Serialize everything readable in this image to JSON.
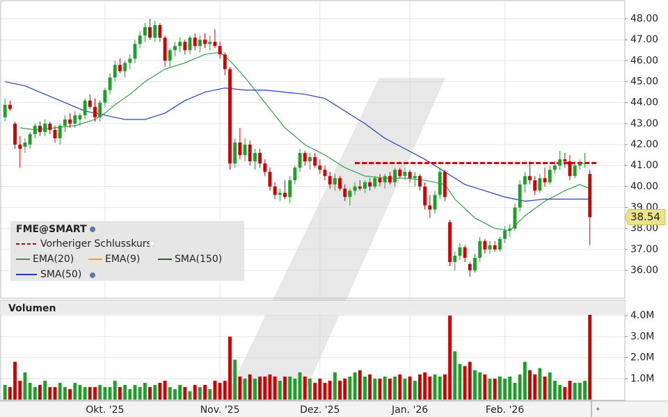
{
  "chart_data": {
    "type": "candlestick",
    "title": "FME@SMART",
    "up_color": "#1f9e2a",
    "down_color": "#cc0000",
    "grid": true,
    "xlim": [
      -1,
      124
    ],
    "xticks": [
      {
        "value": 20,
        "label": "Okt. '25"
      },
      {
        "value": 43,
        "label": "Nov. '25"
      },
      {
        "value": 63,
        "label": "Dez. '25"
      },
      {
        "value": 81,
        "label": "Jan. '26"
      },
      {
        "value": 100,
        "label": "Feb. '26"
      }
    ],
    "ylim": [
      34.71,
      48.83
    ],
    "yticks": [
      {
        "value": 36,
        "label": "36.00"
      },
      {
        "value": 37,
        "label": "37.00"
      },
      {
        "value": 38,
        "label": "38.00"
      },
      {
        "value": 39,
        "label": "39.00"
      },
      {
        "value": 40,
        "label": "40.00"
      },
      {
        "value": 41,
        "label": "41.00"
      },
      {
        "value": 42,
        "label": "42.00"
      },
      {
        "value": 43,
        "label": "43.00"
      },
      {
        "value": 44,
        "label": "44.00"
      },
      {
        "value": 45,
        "label": "45.00"
      },
      {
        "value": 46,
        "label": "46.00"
      },
      {
        "value": 47,
        "label": "47.00"
      },
      {
        "value": 48,
        "label": "48.00"
      }
    ],
    "ohlc": [
      [
        43.3,
        44.2,
        43.1,
        43.9
      ],
      [
        43.9,
        44.1,
        43.6,
        43.7
      ],
      [
        43.0,
        43.1,
        41.8,
        42.0
      ],
      [
        42.0,
        42.4,
        40.9,
        41.8
      ],
      [
        41.9,
        42.3,
        41.6,
        42.1
      ],
      [
        42.0,
        42.6,
        41.8,
        42.5
      ],
      [
        42.5,
        43.0,
        42.3,
        42.9
      ],
      [
        42.9,
        43.1,
        42.4,
        42.6
      ],
      [
        42.6,
        43.2,
        42.4,
        43.0
      ],
      [
        43.0,
        43.1,
        42.5,
        42.7
      ],
      [
        42.7,
        42.9,
        42.1,
        42.3
      ],
      [
        42.3,
        43.0,
        42.0,
        42.9
      ],
      [
        42.9,
        43.4,
        42.6,
        43.2
      ],
      [
        43.2,
        43.5,
        42.8,
        43.0
      ],
      [
        43.0,
        43.6,
        42.8,
        43.4
      ],
      [
        43.2,
        43.5,
        42.9,
        43.4
      ],
      [
        43.4,
        44.2,
        43.2,
        44.1
      ],
      [
        44.1,
        44.4,
        43.7,
        43.8
      ],
      [
        43.8,
        44.2,
        43.1,
        43.3
      ],
      [
        43.3,
        44.1,
        43.1,
        44.0
      ],
      [
        44.0,
        44.7,
        43.8,
        44.6
      ],
      [
        44.6,
        45.4,
        44.4,
        45.2
      ],
      [
        45.2,
        46.0,
        45.0,
        45.8
      ],
      [
        45.8,
        46.1,
        45.4,
        45.5
      ],
      [
        45.5,
        46.0,
        45.2,
        45.9
      ],
      [
        45.9,
        46.3,
        45.6,
        46.1
      ],
      [
        46.1,
        47.0,
        45.9,
        46.8
      ],
      [
        46.8,
        47.4,
        46.6,
        47.2
      ],
      [
        47.2,
        47.8,
        46.9,
        47.6
      ],
      [
        47.6,
        48.0,
        47.0,
        47.1
      ],
      [
        47.1,
        47.9,
        46.9,
        47.7
      ],
      [
        47.7,
        47.8,
        46.9,
        47.1
      ],
      [
        47.1,
        47.2,
        45.7,
        46.0
      ],
      [
        46.0,
        46.6,
        45.7,
        46.5
      ],
      [
        46.5,
        46.9,
        46.2,
        46.7
      ],
      [
        46.7,
        47.1,
        46.4,
        46.9
      ],
      [
        46.9,
        47.0,
        46.3,
        46.5
      ],
      [
        46.5,
        47.2,
        46.3,
        47.1
      ],
      [
        47.1,
        47.3,
        46.5,
        46.7
      ],
      [
        46.7,
        47.2,
        46.4,
        47.0
      ],
      [
        47.0,
        47.3,
        46.6,
        46.8
      ],
      [
        46.8,
        47.2,
        46.5,
        46.9
      ],
      [
        46.9,
        47.5,
        46.6,
        46.7
      ],
      [
        46.7,
        46.9,
        46.1,
        46.3
      ],
      [
        46.3,
        46.4,
        45.3,
        45.6
      ],
      [
        45.6,
        45.7,
        40.8,
        41.1
      ],
      [
        41.1,
        42.3,
        40.9,
        42.1
      ],
      [
        42.1,
        42.8,
        41.3,
        41.5
      ],
      [
        41.5,
        42.3,
        41.2,
        42.0
      ],
      [
        42.0,
        42.2,
        41.0,
        41.2
      ],
      [
        41.2,
        41.8,
        40.8,
        41.6
      ],
      [
        41.6,
        41.8,
        40.9,
        41.1
      ],
      [
        41.1,
        41.3,
        40.5,
        40.7
      ],
      [
        40.7,
        40.9,
        39.8,
        40.0
      ],
      [
        40.0,
        40.2,
        39.4,
        39.6
      ],
      [
        39.6,
        39.9,
        39.3,
        39.7
      ],
      [
        39.7,
        40.3,
        39.4,
        39.5
      ],
      [
        39.5,
        40.5,
        39.2,
        40.3
      ],
      [
        40.3,
        41.0,
        40.1,
        40.9
      ],
      [
        40.9,
        41.8,
        40.7,
        41.6
      ],
      [
        41.6,
        41.7,
        41.0,
        41.2
      ],
      [
        41.2,
        41.6,
        40.8,
        41.4
      ],
      [
        41.4,
        41.6,
        40.9,
        41.0
      ],
      [
        41.0,
        41.3,
        40.6,
        40.8
      ],
      [
        40.8,
        41.0,
        40.3,
        40.5
      ],
      [
        40.5,
        40.7,
        39.9,
        40.1
      ],
      [
        40.1,
        40.6,
        39.8,
        40.4
      ],
      [
        40.4,
        40.5,
        39.8,
        39.9
      ],
      [
        39.9,
        40.1,
        39.3,
        39.5
      ],
      [
        39.5,
        39.9,
        39.1,
        39.8
      ],
      [
        39.8,
        40.2,
        39.6,
        40.0
      ],
      [
        40.0,
        40.3,
        39.8,
        39.9
      ],
      [
        39.9,
        40.3,
        39.7,
        40.2
      ],
      [
        40.2,
        40.4,
        39.8,
        40.0
      ],
      [
        40.0,
        40.5,
        39.9,
        40.4
      ],
      [
        40.4,
        40.6,
        40.0,
        40.2
      ],
      [
        40.2,
        40.6,
        39.9,
        40.5
      ],
      [
        40.5,
        40.7,
        40.1,
        40.2
      ],
      [
        40.2,
        40.9,
        40.0,
        40.8
      ],
      [
        40.8,
        40.9,
        40.4,
        40.5
      ],
      [
        40.5,
        40.9,
        40.3,
        40.7
      ],
      [
        40.7,
        40.8,
        40.2,
        40.4
      ],
      [
        40.4,
        40.7,
        40.0,
        40.5
      ],
      [
        40.5,
        40.6,
        39.8,
        40.0
      ],
      [
        40.0,
        40.2,
        38.9,
        39.1
      ],
      [
        39.1,
        39.6,
        38.5,
        38.9
      ],
      [
        38.9,
        39.8,
        38.7,
        39.6
      ],
      [
        39.6,
        40.9,
        39.4,
        40.7
      ],
      [
        40.7,
        40.8,
        39.3,
        39.5
      ],
      [
        38.3,
        38.4,
        36.2,
        36.4
      ],
      [
        36.4,
        36.9,
        36.0,
        36.7
      ],
      [
        36.7,
        37.3,
        36.5,
        37.1
      ],
      [
        37.1,
        37.2,
        36.4,
        36.6
      ],
      [
        36.3,
        36.4,
        35.7,
        36.0
      ],
      [
        36.0,
        36.8,
        35.9,
        36.6
      ],
      [
        36.6,
        37.6,
        36.4,
        37.4
      ],
      [
        37.4,
        37.5,
        36.8,
        37.0
      ],
      [
        37.0,
        37.4,
        36.8,
        37.2
      ],
      [
        37.2,
        37.4,
        36.9,
        37.0
      ],
      [
        37.0,
        37.6,
        36.9,
        37.5
      ],
      [
        37.5,
        38.1,
        37.3,
        37.9
      ],
      [
        37.9,
        38.2,
        37.6,
        38.0
      ],
      [
        38.0,
        39.2,
        37.9,
        39.0
      ],
      [
        39.0,
        40.3,
        38.8,
        40.1
      ],
      [
        40.1,
        40.7,
        39.7,
        40.5
      ],
      [
        40.5,
        41.2,
        40.1,
        40.3
      ],
      [
        40.3,
        40.5,
        39.6,
        39.8
      ],
      [
        39.8,
        40.6,
        39.7,
        40.4
      ],
      [
        40.4,
        40.9,
        40.0,
        40.2
      ],
      [
        40.2,
        41.0,
        40.1,
        40.8
      ],
      [
        40.8,
        41.2,
        40.6,
        41.0
      ],
      [
        41.0,
        41.7,
        40.8,
        41.3
      ],
      [
        41.3,
        41.6,
        40.9,
        41.2
      ],
      [
        41.2,
        41.5,
        40.3,
        40.5
      ],
      [
        40.5,
        41.2,
        40.4,
        41.0
      ],
      [
        41.0,
        41.3,
        40.8,
        41.1
      ],
      [
        41.1,
        41.6,
        40.9,
        41.12
      ],
      [
        40.6,
        40.8,
        37.2,
        38.54
      ]
    ],
    "series": [
      {
        "name": "EMA(20)",
        "color": "#2e9e4a",
        "x": [
          3,
          6,
          10,
          14,
          18,
          20,
          22,
          25,
          28,
          32,
          36,
          40,
          43,
          45,
          48,
          52,
          56,
          60,
          64,
          68,
          72,
          76,
          80,
          84,
          88,
          90,
          94,
          98,
          101,
          104,
          108,
          112,
          115,
          117
        ],
        "values": [
          42.8,
          42.7,
          42.8,
          42.9,
          43.2,
          43.5,
          43.9,
          44.4,
          45.0,
          45.6,
          45.9,
          46.3,
          46.4,
          46.0,
          45.2,
          44.0,
          42.8,
          42.0,
          41.5,
          40.9,
          40.5,
          40.4,
          40.4,
          40.3,
          40.1,
          39.4,
          38.5,
          38.0,
          37.9,
          38.6,
          39.3,
          39.8,
          40.1,
          39.9
        ]
      },
      {
        "name": "EMA(9)",
        "color": "#e8a030",
        "x": [],
        "values": []
      },
      {
        "name": "SMA(150)",
        "color": "#2d5e1e",
        "x": [],
        "values": []
      },
      {
        "name": "SMA(50)",
        "color": "#1f3fbf",
        "x": [
          0,
          4,
          8,
          12,
          16,
          20,
          24,
          28,
          32,
          36,
          40,
          44,
          48,
          52,
          56,
          60,
          64,
          68,
          72,
          76,
          80,
          84,
          88,
          92,
          96,
          100,
          104,
          108,
          112,
          117
        ],
        "values": [
          45.0,
          44.8,
          44.4,
          44.0,
          43.6,
          43.4,
          43.2,
          43.2,
          43.5,
          44.1,
          44.5,
          44.7,
          44.6,
          44.6,
          44.5,
          44.4,
          44.2,
          43.6,
          43.0,
          42.3,
          41.8,
          41.3,
          40.7,
          40.1,
          39.8,
          39.5,
          39.3,
          39.4,
          39.4,
          39.4
        ]
      }
    ],
    "reference_line": {
      "name": "Vorheriger Schlusskurs",
      "value": 41.12,
      "x_start": 70,
      "color": "#cc0000"
    },
    "volume": {
      "title": "Volumen",
      "ylim": [
        0,
        4700000
      ],
      "yticks": [
        {
          "value": 1000000,
          "label": "1.0M"
        },
        {
          "value": 2000000,
          "label": "2.0M"
        },
        {
          "value": 3000000,
          "label": "3.0M"
        },
        {
          "value": 4000000,
          "label": "4.0M"
        }
      ],
      "values": [
        700000,
        600000,
        1800000,
        900000,
        1300000,
        800000,
        600000,
        700000,
        900000,
        600000,
        600000,
        800000,
        600000,
        500000,
        800000,
        700000,
        600000,
        600000,
        600000,
        700000,
        600000,
        600000,
        900000,
        600000,
        700000,
        500000,
        700000,
        600000,
        800000,
        600000,
        700000,
        800000,
        900000,
        600000,
        500000,
        700000,
        600000,
        400000,
        700000,
        600000,
        700000,
        500000,
        900000,
        800000,
        900000,
        3000000,
        1900000,
        1100000,
        1000000,
        1200000,
        1000000,
        1100000,
        1100000,
        1200000,
        1100000,
        900000,
        1100000,
        1100000,
        1000000,
        1300000,
        1100000,
        1000000,
        800000,
        1000000,
        800000,
        900000,
        1300000,
        900000,
        1000000,
        1100000,
        1300000,
        1400000,
        1100000,
        1200000,
        1000000,
        1000000,
        1100000,
        1000000,
        1100000,
        1200000,
        1000000,
        1100000,
        900000,
        1200000,
        1300000,
        1100000,
        1200000,
        1100000,
        1200000,
        4000000,
        2300000,
        1700000,
        1600000,
        1800000,
        1400000,
        1300000,
        1200000,
        1000000,
        1000000,
        1100000,
        1000000,
        1100000,
        800000,
        1200000,
        1800000,
        1400000,
        1200000,
        1500000,
        1100000,
        1300000,
        900000,
        700000,
        600000,
        900000,
        800000,
        800000,
        900000,
        4450000
      ]
    }
  }
}
